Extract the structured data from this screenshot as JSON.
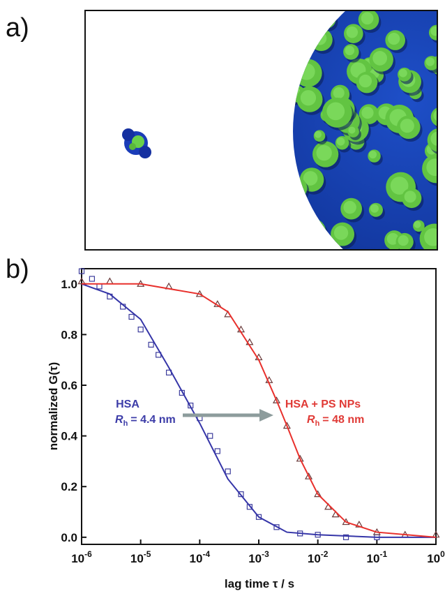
{
  "panels": {
    "a": {
      "label": "a)"
    },
    "b": {
      "label": "b)"
    }
  },
  "chart_data": {
    "type": "scatter",
    "log_x": true,
    "x_label": "lag time τ / s",
    "y_label": "normalized G(τ)",
    "xlim": [
      1e-06,
      1
    ],
    "ylim": [
      -0.028,
      1.06
    ],
    "xticks": [
      {
        "value": 1e-06,
        "label": "10",
        "exponent": "-6"
      },
      {
        "value": 1e-05,
        "label": "10",
        "exponent": "-5"
      },
      {
        "value": 0.0001,
        "label": "10",
        "exponent": "-4"
      },
      {
        "value": 0.001,
        "label": "10",
        "exponent": "-3"
      },
      {
        "value": 0.01,
        "label": "10",
        "exponent": "-2"
      },
      {
        "value": 0.1,
        "label": "10",
        "exponent": "-1"
      },
      {
        "value": 1,
        "label": "10",
        "exponent": "0"
      }
    ],
    "yticks": [
      {
        "value": 0,
        "label": "0.0"
      },
      {
        "value": 0.2,
        "label": "0.2"
      },
      {
        "value": 0.4,
        "label": "0.4"
      },
      {
        "value": 0.6,
        "label": "0.6"
      },
      {
        "value": 0.8,
        "label": "0.8"
      },
      {
        "value": 1,
        "label": "1.0"
      }
    ],
    "series": [
      {
        "marker": "square",
        "color": "#3c3c9c",
        "x": [
          1e-06,
          1.5e-06,
          2e-06,
          3e-06,
          5e-06,
          7e-06,
          1e-05,
          1.5e-05,
          2e-05,
          3e-05,
          5e-05,
          7e-05,
          0.0001,
          0.00015,
          0.0002,
          0.0003,
          0.0005,
          0.0007,
          0.001,
          0.002,
          0.005,
          0.01,
          0.03,
          0.1
        ],
        "values": [
          1.05,
          1.02,
          0.99,
          0.95,
          0.91,
          0.87,
          0.82,
          0.76,
          0.72,
          0.65,
          0.57,
          0.52,
          0.47,
          0.4,
          0.34,
          0.26,
          0.17,
          0.12,
          0.08,
          0.04,
          0.015,
          0.01,
          0,
          0
        ]
      },
      {
        "marker": "triangle",
        "color": "#6a3a3a",
        "x": [
          1e-06,
          3e-06,
          1e-05,
          3e-05,
          0.0001,
          0.0002,
          0.0003,
          0.0005,
          0.0007,
          0.001,
          0.0015,
          0.002,
          0.003,
          0.005,
          0.007,
          0.01,
          0.015,
          0.02,
          0.03,
          0.05,
          0.1,
          0.3,
          1
        ],
        "values": [
          1.01,
          1.01,
          1,
          0.99,
          0.96,
          0.92,
          0.88,
          0.82,
          0.77,
          0.71,
          0.62,
          0.54,
          0.44,
          0.31,
          0.24,
          0.17,
          0.12,
          0.09,
          0.06,
          0.05,
          0.02,
          0.01,
          0.01
        ]
      },
      {
        "marker": "line",
        "color": "#3535a8",
        "x": [
          1e-06,
          3e-06,
          1e-05,
          3e-05,
          0.0001,
          0.0003,
          0.001,
          0.003,
          0.01,
          0.1,
          1
        ],
        "values": [
          1,
          0.96,
          0.86,
          0.67,
          0.45,
          0.23,
          0.08,
          0.02,
          0.01,
          0,
          0
        ]
      },
      {
        "marker": "line",
        "color": "#e8302c",
        "x": [
          1e-06,
          1e-05,
          0.0001,
          0.0003,
          0.001,
          0.002,
          0.003,
          0.005,
          0.01,
          0.03,
          0.1,
          1
        ],
        "values": [
          1,
          1,
          0.96,
          0.89,
          0.7,
          0.54,
          0.44,
          0.31,
          0.17,
          0.06,
          0.02,
          0
        ]
      }
    ],
    "annotations": {
      "hsa": {
        "text": "HSA",
        "color": "#3c3ca8"
      },
      "hsa_radius": {
        "symbol": "R",
        "subscript": "h",
        "text": "= 4.4 nm",
        "color": "#3c3ca8"
      },
      "np": {
        "text": "HSA + PS NPs",
        "color": "#e03a36"
      },
      "np_radius": {
        "symbol": "R",
        "subscript": "h",
        "text": "= 48 nm",
        "color": "#e03a36"
      }
    }
  }
}
